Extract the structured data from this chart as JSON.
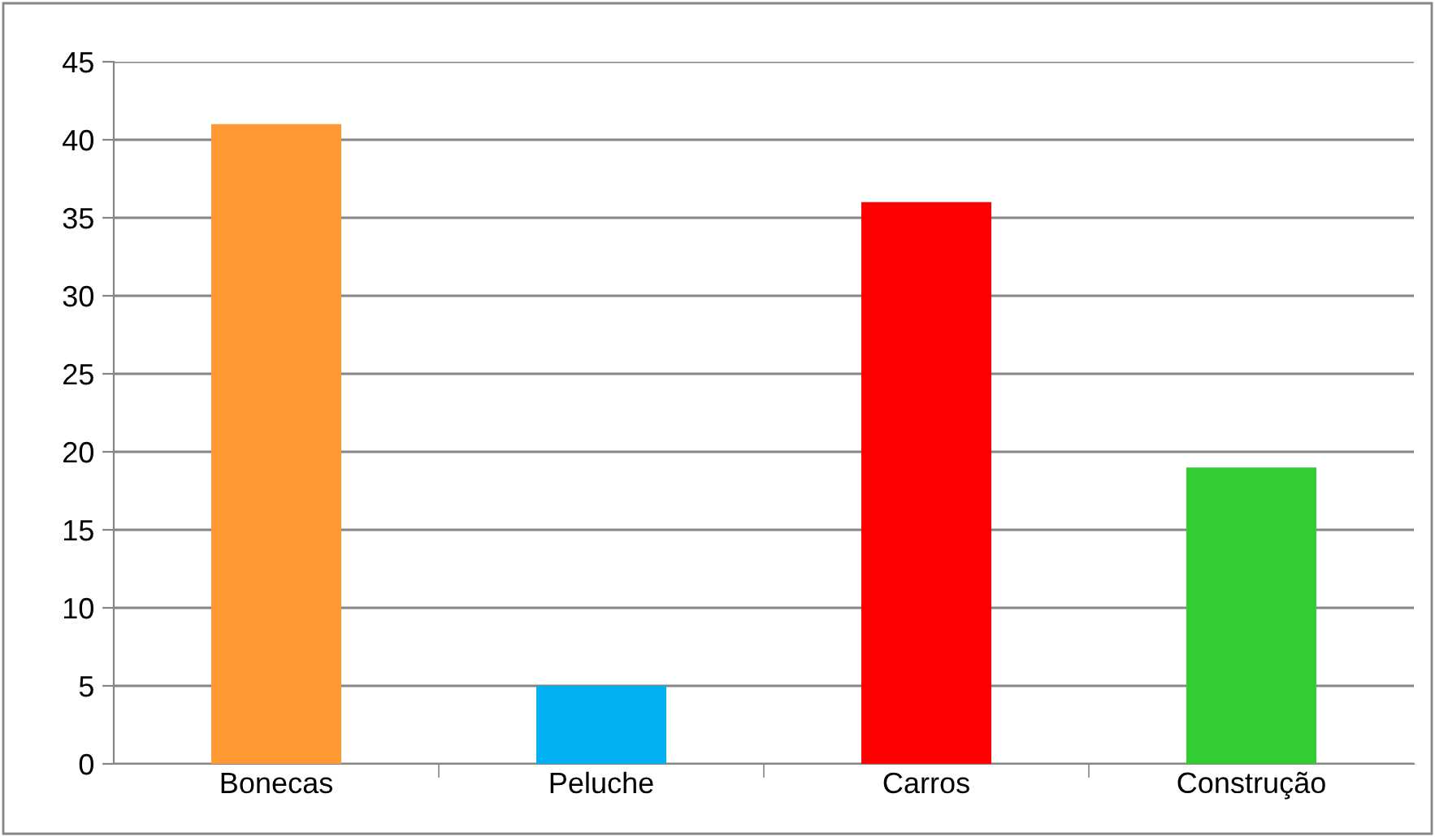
{
  "chart_data": {
    "type": "bar",
    "categories": [
      "Bonecas",
      "Peluche",
      "Carros",
      "Construção"
    ],
    "values": [
      41,
      5,
      36,
      19
    ],
    "colors": [
      "#ff9933",
      "#00b0f0",
      "#ff0000",
      "#33cc33"
    ],
    "ylim": [
      0,
      45
    ],
    "yticks": [
      0,
      5,
      10,
      15,
      20,
      25,
      30,
      35,
      40,
      45
    ],
    "grid": "y"
  }
}
